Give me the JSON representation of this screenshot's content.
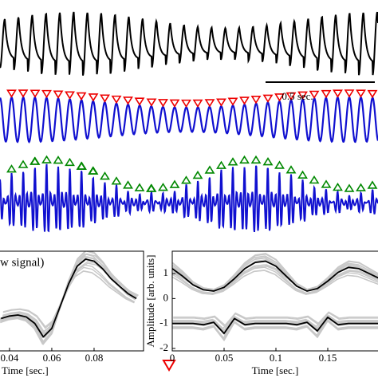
{
  "scale_bar_label": "0.5 sec.",
  "chart_data": [
    {
      "type": "line",
      "title": "w signal)",
      "xlabel": "Time [sec.]",
      "xlim": [
        0.0355,
        0.1034
      ],
      "ylim": [
        -1,
        1
      ],
      "xticks": [
        0.04,
        0.06,
        0.08
      ],
      "x": [
        0.036,
        0.04,
        0.044,
        0.048,
        0.052,
        0.056,
        0.06,
        0.064,
        0.068,
        0.072,
        0.076,
        0.08,
        0.084,
        0.088,
        0.092,
        0.096,
        0.1
      ],
      "series": [
        {
          "color": "#000000",
          "values": [
            -0.35,
            -0.3,
            -0.28,
            -0.32,
            -0.45,
            -0.72,
            -0.55,
            -0.1,
            0.35,
            0.7,
            0.84,
            0.8,
            0.65,
            0.45,
            0.3,
            0.15,
            0.05
          ]
        }
      ]
    },
    {
      "type": "line",
      "xlabel": "Time [sec.]",
      "ylabel": "Amplitude [arb. units]",
      "xlim": [
        0,
        0.2
      ],
      "ylim": [
        -2.1,
        1.9
      ],
      "xticks": [
        0,
        0.05,
        0.1,
        0.15
      ],
      "yticks": [
        1,
        0,
        -1,
        -2
      ],
      "x": [
        0,
        0.01,
        0.02,
        0.03,
        0.04,
        0.05,
        0.06,
        0.07,
        0.08,
        0.09,
        0.1,
        0.11,
        0.12,
        0.13,
        0.14,
        0.15,
        0.16,
        0.17,
        0.18,
        0.19,
        0.2
      ],
      "series": [
        {
          "color": "#000000",
          "values": [
            1.2,
            0.9,
            0.55,
            0.35,
            0.3,
            0.45,
            0.8,
            1.2,
            1.45,
            1.5,
            1.3,
            0.9,
            0.5,
            0.3,
            0.4,
            0.7,
            1.05,
            1.25,
            1.2,
            1.0,
            0.8
          ]
        },
        {
          "color": "#000000",
          "values": [
            -1,
            -1,
            -1,
            -1.05,
            -0.95,
            -1.4,
            -0.8,
            -1.05,
            -1,
            -1,
            -1,
            -1,
            -1.05,
            -0.95,
            -1.3,
            -0.75,
            -1.05,
            -1,
            -1,
            -1,
            -1
          ]
        }
      ]
    }
  ]
}
